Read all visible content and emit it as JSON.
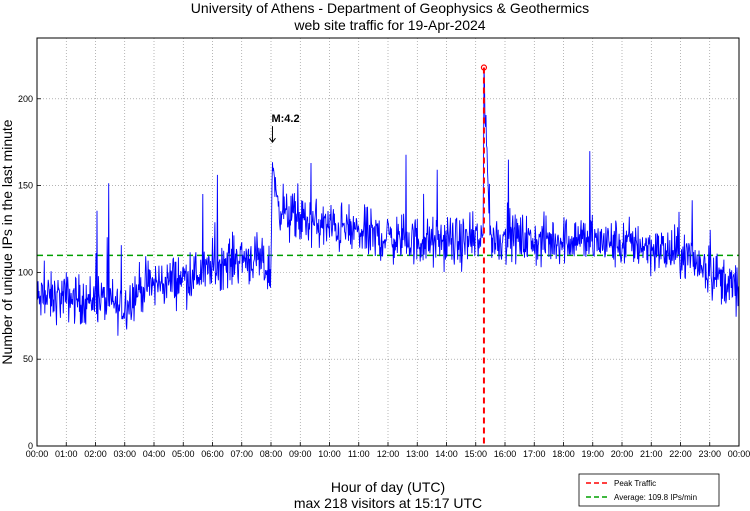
{
  "chart_data": {
    "type": "line",
    "title_line1": "University of Athens - Department of Geophysics & Geothermics",
    "title_line2": "web site traffic for 19-Apr-2024",
    "xlabel": "Hour of day (UTC)",
    "subtitle": "max 218 visitors at 15:17 UTC",
    "ylabel": "Number of unique IPs in the last minute",
    "ylim": [
      0,
      235
    ],
    "xlim_hours": [
      0,
      24
    ],
    "y_ticks": [
      0,
      50,
      100,
      150,
      200
    ],
    "x_ticks": [
      "00:00",
      "01:00",
      "02:00",
      "03:00",
      "04:00",
      "05:00",
      "06:00",
      "07:00",
      "08:00",
      "09:00",
      "10:00",
      "11:00",
      "12:00",
      "13:00",
      "14:00",
      "15:00",
      "16:00",
      "17:00",
      "18:00",
      "19:00",
      "20:00",
      "21:00",
      "22:00",
      "23:00",
      "00:00"
    ],
    "grid": true,
    "series": [
      {
        "name": "traffic",
        "color": "#0000ff",
        "hours": [
          0,
          0.5,
          1,
          1.5,
          2,
          2.5,
          2.9,
          3.5,
          4,
          4.5,
          4.8,
          5,
          5.5,
          6,
          6.5,
          7,
          7.5,
          8,
          8.05,
          8.15,
          8.5,
          9,
          9.5,
          10,
          10.5,
          11,
          11.5,
          12,
          12.5,
          13,
          13.5,
          14,
          14.5,
          15,
          15.25,
          15.28,
          15.5,
          16,
          16.5,
          17,
          17.5,
          18,
          18.5,
          19,
          19.5,
          20,
          20.5,
          21,
          21.5,
          22,
          22.5,
          23,
          23.5,
          24
        ],
        "values": [
          84,
          85,
          86,
          84,
          85,
          83,
          79,
          91,
          93,
          95,
          96,
          97,
          99,
          103,
          106,
          109,
          107,
          100,
          170,
          145,
          133,
          130,
          128,
          126,
          125,
          123,
          121,
          120,
          119,
          118,
          117,
          118,
          117,
          118,
          118,
          218,
          119,
          120,
          120,
          117,
          118,
          119,
          120,
          118,
          117,
          116,
          117,
          114,
          112,
          110,
          107,
          101,
          95,
          89
        ]
      }
    ],
    "peak": {
      "label": "Peak Traffic",
      "hour": 15.28,
      "value": 218,
      "color": "#ff0000"
    },
    "average": {
      "label": "Average: 109.8 IPs/min",
      "value": 109.8,
      "color": "#00a000"
    },
    "annotation": {
      "text": "M:4.2",
      "hour": 8.05,
      "value": 175
    }
  }
}
